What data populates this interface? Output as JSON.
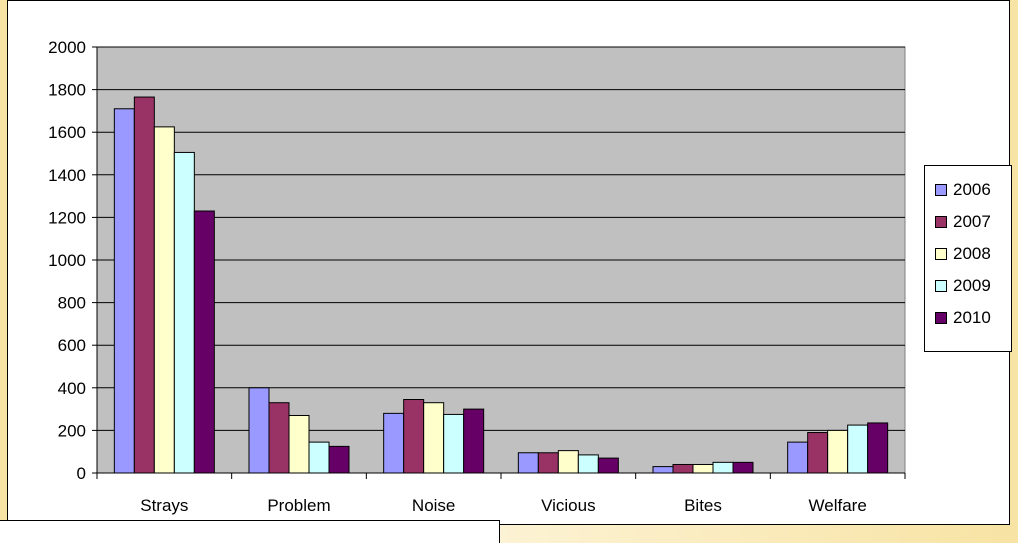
{
  "chart_data": {
    "type": "bar",
    "categories": [
      "Strays",
      "Problem",
      "Noise",
      "Vicious",
      "Bites",
      "Welfare"
    ],
    "series": [
      {
        "name": "2006",
        "color": "#9999ff",
        "values": [
          1710,
          400,
          280,
          95,
          30,
          145
        ]
      },
      {
        "name": "2007",
        "color": "#993366",
        "values": [
          1765,
          330,
          345,
          95,
          40,
          190
        ]
      },
      {
        "name": "2008",
        "color": "#ffffcc",
        "values": [
          1625,
          270,
          330,
          105,
          40,
          200
        ]
      },
      {
        "name": "2009",
        "color": "#ccffff",
        "values": [
          1505,
          145,
          275,
          85,
          50,
          225
        ]
      },
      {
        "name": "2010",
        "color": "#660066",
        "values": [
          1230,
          125,
          300,
          70,
          50,
          235
        ]
      }
    ],
    "ylim": [
      0,
      2000
    ],
    "yticks": [
      "0",
      "200",
      "400",
      "600",
      "800",
      "1000",
      "1200",
      "1400",
      "1600",
      "1800",
      "2000"
    ],
    "grid": true,
    "legend": "right",
    "plot_background": "#c0c0c0"
  }
}
